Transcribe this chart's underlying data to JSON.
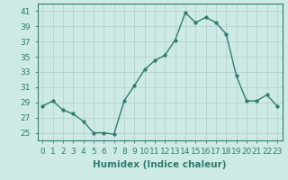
{
  "x": [
    0,
    1,
    2,
    3,
    4,
    5,
    6,
    7,
    8,
    9,
    10,
    11,
    12,
    13,
    14,
    15,
    16,
    17,
    18,
    19,
    20,
    21,
    22,
    23
  ],
  "y": [
    28.5,
    29.2,
    28.0,
    27.5,
    26.5,
    25.0,
    25.0,
    24.8,
    29.2,
    31.2,
    33.3,
    34.5,
    35.2,
    37.2,
    40.8,
    39.5,
    40.2,
    39.5,
    38.0,
    32.5,
    29.2,
    29.2,
    30.0,
    28.5
  ],
  "line_color": "#2e7d6e",
  "marker_color": "#2e7d6e",
  "bg_color": "#ceeae4",
  "grid_color": "#b0cec8",
  "xlabel": "Humidex (Indice chaleur)",
  "ylim": [
    24,
    42
  ],
  "xlim": [
    -0.5,
    23.5
  ],
  "yticks": [
    25,
    27,
    29,
    31,
    33,
    35,
    37,
    39,
    41
  ],
  "xticks": [
    0,
    1,
    2,
    3,
    4,
    5,
    6,
    7,
    8,
    9,
    10,
    11,
    12,
    13,
    14,
    15,
    16,
    17,
    18,
    19,
    20,
    21,
    22,
    23
  ],
  "xtick_labels": [
    "0",
    "1",
    "2",
    "3",
    "4",
    "5",
    "6",
    "7",
    "8",
    "9",
    "10",
    "11",
    "12",
    "13",
    "14",
    "15",
    "16",
    "17",
    "18",
    "19",
    "20",
    "21",
    "22",
    "23"
  ],
  "tick_fontsize": 6.5,
  "label_fontsize": 7.5,
  "line_width": 1.0,
  "marker_size": 2.5
}
